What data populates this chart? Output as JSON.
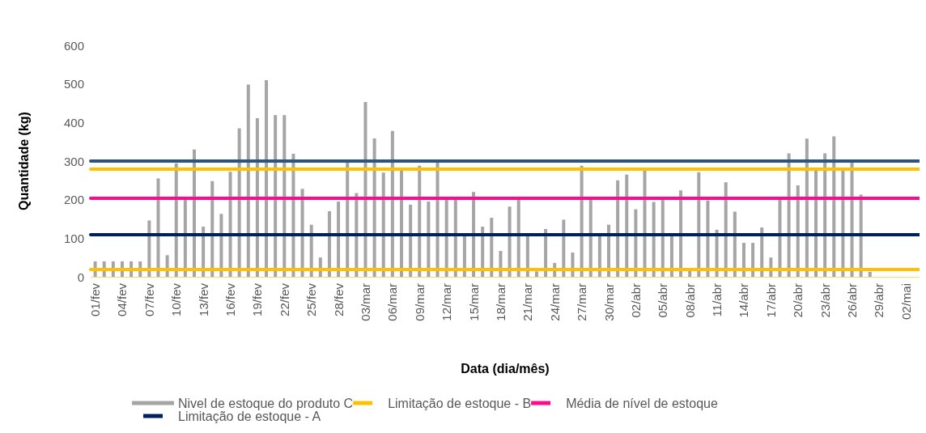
{
  "chart_data": {
    "type": "bar",
    "xlabel": "Data (dia/mês)",
    "ylabel": "Quantidade (kg)",
    "categories": [
      "01/fev",
      null,
      null,
      "04/fev",
      null,
      null,
      "07/fev",
      null,
      null,
      "10/fev",
      null,
      null,
      "13/fev",
      null,
      null,
      "16/fev",
      null,
      null,
      "19/fev",
      null,
      null,
      "22/fev",
      null,
      null,
      "25/fev",
      null,
      null,
      "28/fev",
      null,
      null,
      "03/mar",
      null,
      null,
      "06/mar",
      null,
      null,
      "09/mar",
      null,
      null,
      "12/mar",
      null,
      null,
      "15/mar",
      null,
      null,
      "18/mar",
      null,
      null,
      "21/mar",
      null,
      null,
      "24/mar",
      null,
      null,
      "27/mar",
      null,
      null,
      "30/mar",
      null,
      null,
      "02/abr",
      null,
      null,
      "05/abr",
      null,
      null,
      "08/abr",
      null,
      null,
      "11/abr",
      null,
      null,
      "14/abr",
      null,
      null,
      "17/abr",
      null,
      null,
      "20/abr",
      null,
      null,
      "23/abr",
      null,
      null,
      "26/abr",
      null,
      null,
      "29/abr",
      null,
      null,
      "02/mai",
      null
    ],
    "series": [
      {
        "name": "Nivel de estoque do produto C",
        "color": "#a5a5a5",
        "values": [
          40,
          40,
          40,
          40,
          40,
          40,
          146,
          255,
          56,
          294,
          202,
          330,
          130,
          248,
          163,
          272,
          385,
          498,
          411,
          510,
          419,
          419,
          319,
          228,
          135,
          50,
          170,
          195,
          296,
          217,
          453,
          359,
          270,
          378,
          276,
          187,
          288,
          195,
          296,
          202,
          202,
          106,
          220,
          130,
          153,
          67,
          182,
          202,
          106,
          14,
          124,
          36,
          148,
          63,
          288,
          202,
          106,
          135,
          250,
          265,
          175,
          277,
          194,
          202,
          106,
          224,
          15,
          271,
          198,
          122,
          245,
          169,
          88,
          88,
          128,
          50,
          202,
          320,
          237,
          358,
          276,
          320,
          364,
          276,
          296,
          213,
          13,
          null,
          null,
          null,
          null,
          null
        ]
      }
    ],
    "ref_lines": [
      {
        "axis": "y",
        "value": 280,
        "label": "Limitação de estoque - B",
        "color": "#ffc000"
      },
      {
        "axis": "y",
        "value": 205,
        "label": "Média de nível de estoque",
        "color": "#ff0a8c"
      },
      {
        "axis": "y",
        "value": 110,
        "label": "Limitação de estoque - A",
        "color": "#002060"
      },
      {
        "axis": "y",
        "value": 300,
        "label": null,
        "color": "#2a5482"
      },
      {
        "axis": "y",
        "value": 20,
        "label": null,
        "color": "#ffc000"
      }
    ],
    "ylim": [
      0,
      600
    ],
    "yticks": [
      0,
      100,
      200,
      300,
      400,
      500,
      600
    ],
    "grid": false,
    "legend": "bottom"
  }
}
